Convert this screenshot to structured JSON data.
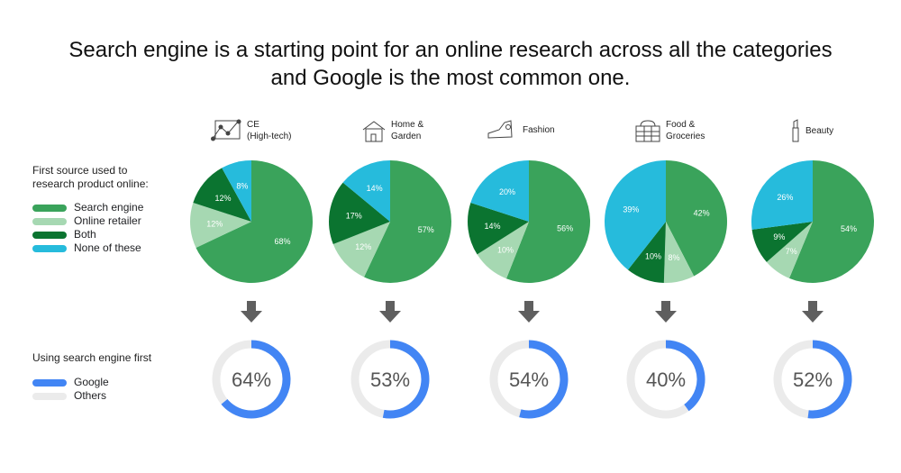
{
  "title_line1": "Search engine is a starting point for an online research across all the categories",
  "title_line2": "and Google is the most common one.",
  "chart_data": [
    {
      "type": "pie",
      "legend_title": "First source used to research product online:",
      "legend_title_line1": "First source used to",
      "legend_title_line2": "research product online:",
      "series_names": [
        "Search engine",
        "Online retailer",
        "Both",
        "None of these"
      ],
      "colors": [
        "#3aa35b",
        "#a6d8b2",
        "#0b7430",
        "#26bbdc"
      ],
      "categories": [
        {
          "name_line1": "CE",
          "name_line2": "(High-tech)",
          "icon": "chart-icon",
          "values": [
            68,
            12,
            12,
            8
          ]
        },
        {
          "name_line1": "Home &",
          "name_line2": "Garden",
          "icon": "house-icon",
          "values": [
            57,
            12,
            17,
            14
          ]
        },
        {
          "name_line1": "Fashion",
          "name_line2": "",
          "icon": "sneaker-icon",
          "values": [
            56,
            10,
            14,
            20
          ]
        },
        {
          "name_line1": "Food &",
          "name_line2": "Groceries",
          "icon": "basket-icon",
          "values": [
            42,
            8,
            10,
            39
          ]
        },
        {
          "name_line1": "Beauty",
          "name_line2": "",
          "icon": "lipstick-icon",
          "values": [
            54,
            7,
            9,
            26
          ]
        }
      ]
    },
    {
      "type": "donut",
      "legend_title": "Using search engine first",
      "series_names": [
        "Google",
        "Others"
      ],
      "colors": [
        "#4285f4",
        "#ebebeb"
      ],
      "values": [
        64,
        53,
        54,
        40,
        52
      ],
      "labels": [
        "64%",
        "53%",
        "54%",
        "40%",
        "52%"
      ]
    }
  ]
}
